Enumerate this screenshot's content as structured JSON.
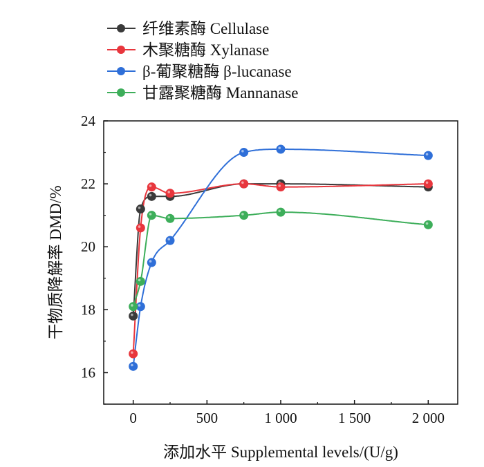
{
  "chart_data": {
    "type": "scatter",
    "x": [
      0,
      50,
      125,
      250,
      750,
      1000,
      2000
    ],
    "series": [
      {
        "name": "纤维素酶  Cellulase",
        "color": "#3a3a3a",
        "values": [
          17.8,
          21.2,
          21.6,
          21.6,
          22.0,
          22.0,
          21.9
        ]
      },
      {
        "name": "木聚糖酶  Xylanase",
        "color": "#e8363d",
        "values": [
          16.6,
          20.6,
          21.9,
          21.7,
          22.0,
          21.9,
          22.0
        ]
      },
      {
        "name": "β-葡聚糖酶  β-lucanase",
        "color": "#2f6fd8",
        "values": [
          16.2,
          18.1,
          19.5,
          20.2,
          23.0,
          23.1,
          22.9
        ]
      },
      {
        "name": "甘露聚糖酶  Mannanase",
        "color": "#3dae5a",
        "values": [
          18.1,
          18.9,
          21.0,
          20.9,
          21.0,
          21.1,
          20.7
        ]
      }
    ],
    "xlabel": "添加水平  Supplemental levels/(U/g)",
    "ylabel": "干物质降解率  DMD/%",
    "xlim": [
      -200,
      2200
    ],
    "ylim": [
      15,
      24
    ],
    "xticks": [
      0,
      500,
      1000,
      1500,
      2000
    ],
    "xtick_labels": [
      "0",
      "500",
      "1 000",
      "1 500",
      "2 000"
    ],
    "yticks": [
      16,
      18,
      20,
      22,
      24
    ],
    "ytick_labels": [
      "16",
      "18",
      "20",
      "22",
      "24"
    ],
    "grid": false,
    "legend_position": "top-left"
  }
}
